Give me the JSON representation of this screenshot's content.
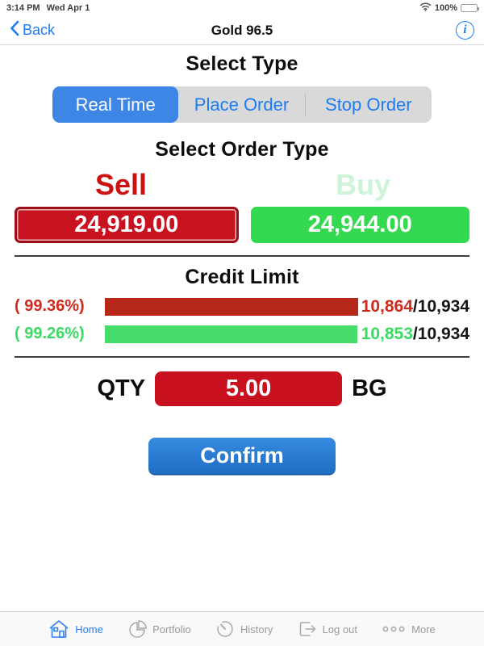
{
  "status_bar": {
    "time": "3:14 PM",
    "date": "Wed Apr 1",
    "battery_pct": "100%"
  },
  "nav": {
    "back_label": "Back",
    "title": "Gold 96.5",
    "info_glyph": "i"
  },
  "select_type": {
    "heading": "Select Type",
    "segments": [
      {
        "label": "Real Time",
        "selected": true
      },
      {
        "label": "Place Order",
        "selected": false
      },
      {
        "label": "Stop Order",
        "selected": false
      }
    ]
  },
  "order_type": {
    "heading": "Select Order Type",
    "sell_label": "Sell",
    "buy_label": "Buy",
    "sell_price": "24,919.00",
    "buy_price": "24,944.00"
  },
  "credit": {
    "heading": "Credit Limit",
    "rows": [
      {
        "percent": "( 99.36%)",
        "used": "10,864",
        "sep": "/",
        "total": "10,934",
        "fill": 99.36,
        "color": "red"
      },
      {
        "percent": "( 99.26%)",
        "used": "10,853",
        "sep": "/",
        "total": "10,934",
        "fill": 99.26,
        "color": "green"
      }
    ]
  },
  "qty": {
    "label": "QTY",
    "value": "5.00",
    "unit": "BG"
  },
  "confirm_label": "Confirm",
  "tab_bar": {
    "items": [
      {
        "label": "Home",
        "active": true
      },
      {
        "label": "Portfolio",
        "active": false
      },
      {
        "label": "History",
        "active": false
      },
      {
        "label": "Log out",
        "active": false
      },
      {
        "label": "More",
        "active": false
      }
    ]
  },
  "colors": {
    "accent_blue": "#1c7cf5",
    "segment_blue": "#3d86e6",
    "sell_red": "#c8121f",
    "buy_green": "#35d94f",
    "bar_red": "#b5281a",
    "bar_green": "#46dd6b",
    "pale_buy_green": "#cdf4d8",
    "confirm_blue": "#2478cf"
  }
}
